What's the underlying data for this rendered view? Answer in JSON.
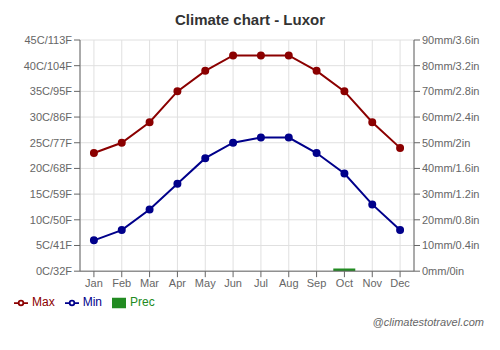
{
  "chart_data": {
    "type": "line",
    "title": "Climate chart - Luxor",
    "categories": [
      "Jan",
      "Feb",
      "Mar",
      "Apr",
      "May",
      "Jun",
      "Jul",
      "Aug",
      "Sep",
      "Oct",
      "Nov",
      "Dec"
    ],
    "series": [
      {
        "name": "Prec",
        "type": "bar",
        "axis": "y2",
        "color": "#228b22",
        "values": [
          0,
          0,
          0,
          0,
          0,
          0,
          0,
          0,
          0,
          1,
          0,
          0
        ]
      },
      {
        "name": "Min",
        "type": "line",
        "color": "#00008b",
        "marker": "circle",
        "line_style": "solid",
        "values": [
          6,
          8,
          12,
          17,
          22,
          25,
          26,
          26,
          23,
          19,
          13,
          8
        ]
      },
      {
        "name": "Max",
        "type": "line",
        "color": "#8b0000",
        "marker": "circle",
        "line_style": "solid",
        "values": [
          23,
          25,
          29,
          35,
          39,
          42,
          42,
          42,
          39,
          35,
          29,
          24
        ]
      }
    ],
    "ylim": [
      0,
      45
    ],
    "yticks": [
      {
        "value": 0,
        "label": "0C/32F"
      },
      {
        "value": 5,
        "label": "5C/41F"
      },
      {
        "value": 10,
        "label": "10C/50F"
      },
      {
        "value": 15,
        "label": "15C/59F"
      },
      {
        "value": 20,
        "label": "20C/68F"
      },
      {
        "value": 25,
        "label": "25C/77F"
      },
      {
        "value": 30,
        "label": "30C/86F"
      },
      {
        "value": 35,
        "label": "35C/95F"
      },
      {
        "value": 40,
        "label": "40C/104F"
      },
      {
        "value": 45,
        "label": "45C/113F"
      }
    ],
    "y2lim": [
      0,
      90
    ],
    "y2ticks": [
      {
        "value": 0,
        "label": "0mm/0in"
      },
      {
        "value": 10,
        "label": "10mm/0.4in"
      },
      {
        "value": 20,
        "label": "20mm/0.8in"
      },
      {
        "value": 30,
        "label": "30mm/1.2in"
      },
      {
        "value": 40,
        "label": "40mm/1.6in"
      },
      {
        "value": 50,
        "label": "50mm/2in"
      },
      {
        "value": 60,
        "label": "60mm/2.4in"
      },
      {
        "value": 70,
        "label": "70mm/2.8in"
      },
      {
        "value": 80,
        "label": "80mm/3.2in"
      },
      {
        "value": 90,
        "label": "90mm/3.6in"
      }
    ],
    "grid": true,
    "legend": "lower left",
    "annotations": [
      "@climatestotravel.com"
    ]
  }
}
